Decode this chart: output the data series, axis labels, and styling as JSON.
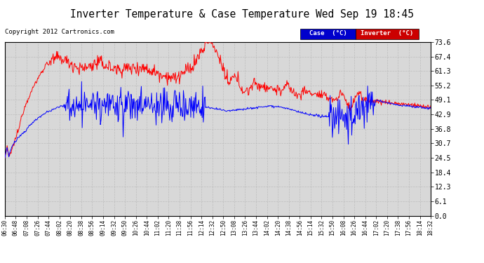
{
  "title": "Inverter Temperature & Case Temperature Wed Sep 19 18:45",
  "copyright": "Copyright 2012 Cartronics.com",
  "y_ticks": [
    0.0,
    6.1,
    12.3,
    18.4,
    24.5,
    30.7,
    36.8,
    42.9,
    49.1,
    55.2,
    61.3,
    67.4,
    73.6
  ],
  "x_tick_labels": [
    "06:30",
    "06:48",
    "07:08",
    "07:26",
    "07:44",
    "08:02",
    "08:20",
    "08:38",
    "08:56",
    "09:14",
    "09:32",
    "09:50",
    "10:26",
    "10:44",
    "11:02",
    "11:20",
    "11:38",
    "11:56",
    "12:14",
    "12:32",
    "12:50",
    "13:08",
    "13:26",
    "13:44",
    "14:02",
    "14:20",
    "14:38",
    "14:56",
    "15:14",
    "15:32",
    "15:50",
    "16:08",
    "16:26",
    "16:44",
    "17:02",
    "17:20",
    "17:38",
    "17:56",
    "18:14",
    "18:32"
  ],
  "ylim": [
    0.0,
    73.6
  ],
  "legend_case_color": "#0000cc",
  "legend_inverter_color": "#cc0000",
  "background_color": "#ffffff",
  "plot_bg_color": "#d8d8d8",
  "grid_color": "#bbbbbb",
  "title_fontsize": 11,
  "copyright_fontsize": 7,
  "line_width": 0.8
}
